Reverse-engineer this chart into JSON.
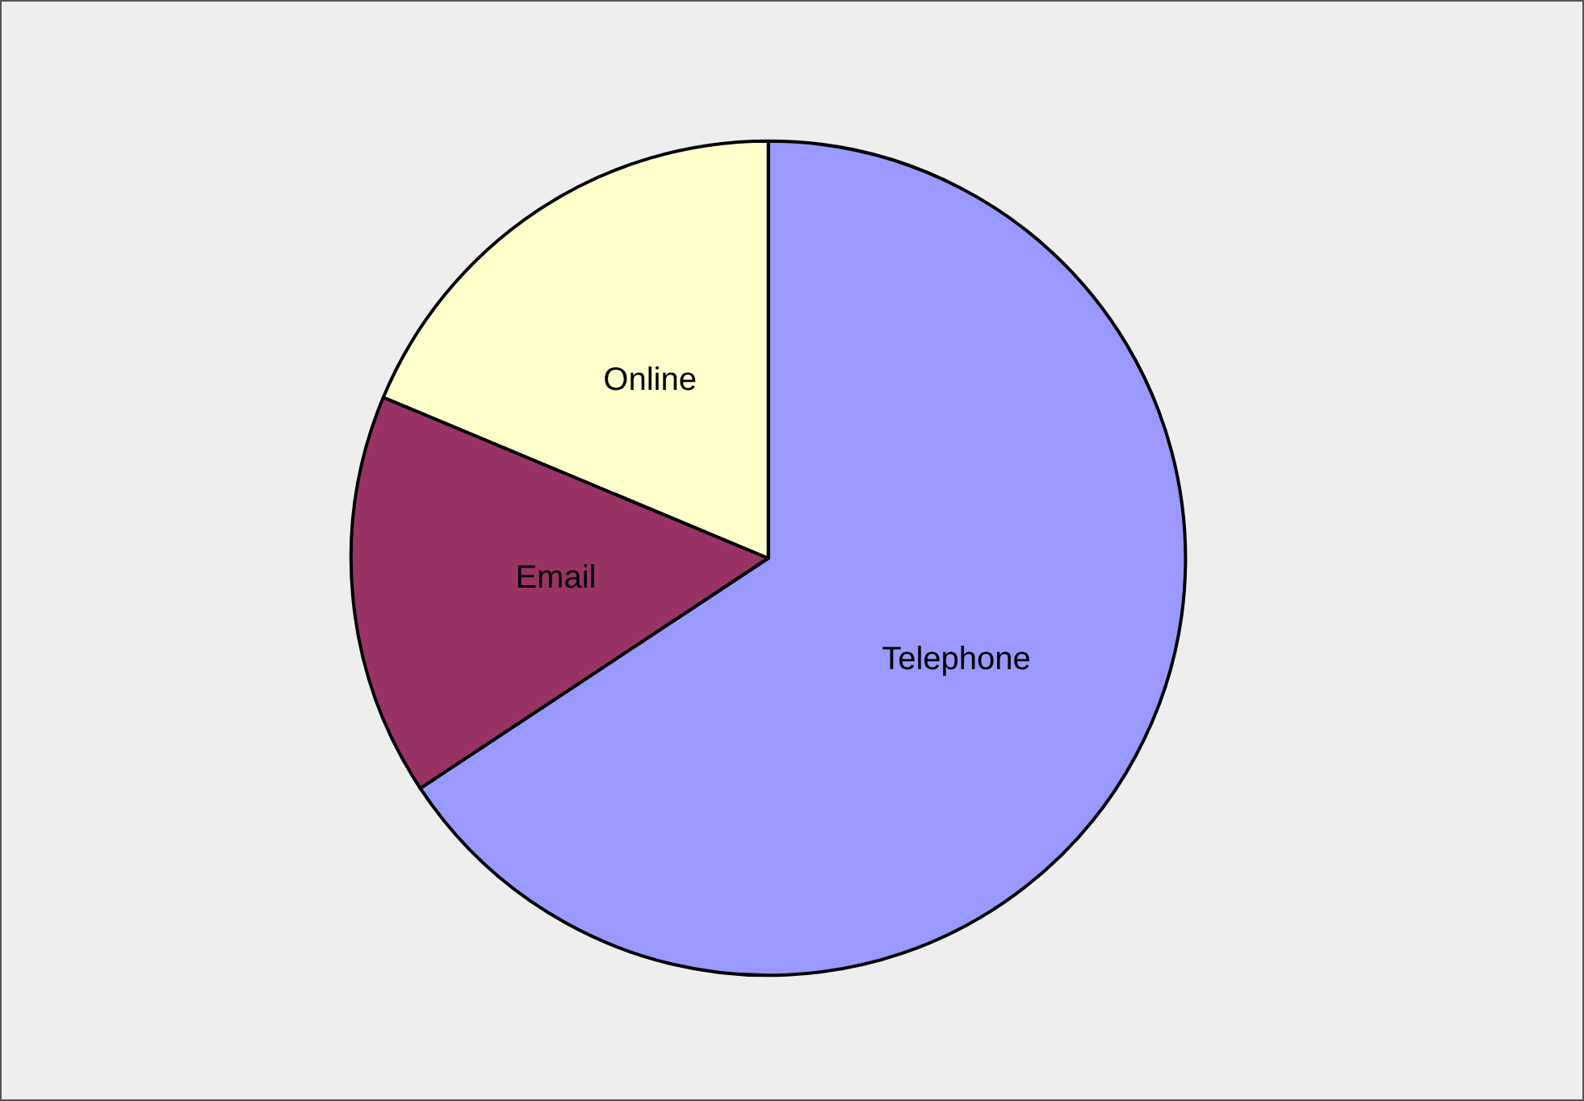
{
  "chart_data": {
    "type": "pie",
    "categories": [
      "Telephone",
      "Email",
      "Online"
    ],
    "values": [
      65.7,
      15.6,
      18.7
    ],
    "colors": [
      "#9999ff",
      "#993366",
      "#ffffcc"
    ],
    "legend": false
  }
}
